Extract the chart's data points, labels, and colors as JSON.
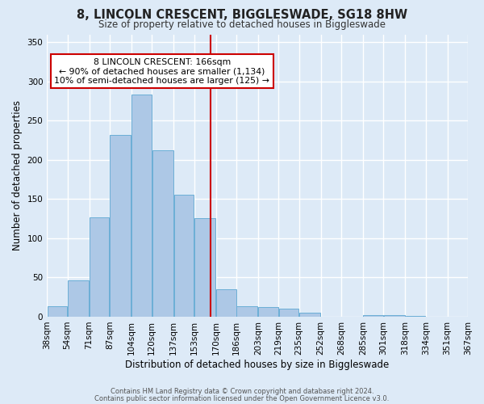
{
  "title": "8, LINCOLN CRESCENT, BIGGLESWADE, SG18 8HW",
  "subtitle": "Size of property relative to detached houses in Biggleswade",
  "xlabel": "Distribution of detached houses by size in Biggleswade",
  "ylabel": "Number of detached properties",
  "bar_color": "#adc8e6",
  "bar_edge_color": "#6baed6",
  "background_color": "#ddeaf7",
  "grid_color": "#ffffff",
  "vline_x": 166,
  "vline_color": "#cc0000",
  "bin_edges": [
    38,
    54,
    71,
    87,
    104,
    120,
    137,
    153,
    170,
    186,
    203,
    219,
    235,
    252,
    268,
    285,
    301,
    318,
    334,
    351,
    367
  ],
  "bin_heights": [
    13,
    46,
    127,
    232,
    283,
    212,
    155,
    126,
    35,
    13,
    12,
    10,
    5,
    0,
    0,
    2,
    2,
    1,
    0,
    0
  ],
  "tick_labels": [
    "38sqm",
    "54sqm",
    "71sqm",
    "87sqm",
    "104sqm",
    "120sqm",
    "137sqm",
    "153sqm",
    "170sqm",
    "186sqm",
    "203sqm",
    "219sqm",
    "235sqm",
    "252sqm",
    "268sqm",
    "285sqm",
    "301sqm",
    "318sqm",
    "334sqm",
    "351sqm",
    "367sqm"
  ],
  "ylim": [
    0,
    360
  ],
  "yticks": [
    0,
    50,
    100,
    150,
    200,
    250,
    300,
    350
  ],
  "annotation_box_text": "8 LINCOLN CRESCENT: 166sqm\n← 90% of detached houses are smaller (1,134)\n10% of semi-detached houses are larger (125) →",
  "annotation_box_color": "#ffffff",
  "annotation_box_edge_color": "#cc0000",
  "footer_line1": "Contains HM Land Registry data © Crown copyright and database right 2024.",
  "footer_line2": "Contains public sector information licensed under the Open Government Licence v3.0."
}
